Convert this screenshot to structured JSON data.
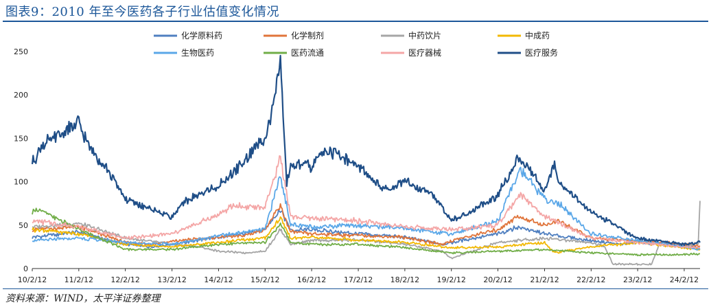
{
  "title": "图表9：2010 年至今医药各子行业估值变化情况",
  "source": "资料来源：WIND，太平洋证券整理",
  "chart_data": {
    "type": "line",
    "ylim": [
      0,
      250
    ],
    "yticks": [
      0,
      50,
      100,
      150,
      200,
      250
    ],
    "x_range": [
      "2010-02-12",
      "2024-06-15"
    ],
    "xticks": [
      "10/2/12",
      "11/2/12",
      "12/2/12",
      "13/2/12",
      "14/2/12",
      "15/2/12",
      "16/2/12",
      "17/2/12",
      "18/2/12",
      "19/2/12",
      "20/2/12",
      "21/2/12",
      "22/2/12",
      "23/2/12",
      "24/2/12"
    ],
    "legend": "top",
    "series": [
      {
        "name": "化学原料药",
        "color": "#4f7fc0",
        "x": [
          "2010-02-12",
          "2011-02-12",
          "2012-02-12",
          "2012-09-01",
          "2013-06-01",
          "2014-02-12",
          "2014-09-01",
          "2015-02-12",
          "2015-06-12",
          "2015-09-01",
          "2016-02-12",
          "2016-09-01",
          "2017-02-12",
          "2018-02-12",
          "2018-12-01",
          "2019-02-12",
          "2020-02-12",
          "2020-07-15",
          "2021-02-12",
          "2022-02-12",
          "2022-10-01",
          "2023-02-12",
          "2024-02-12",
          "2024-06-15"
        ],
        "y": [
          36,
          42,
          28,
          25,
          30,
          36,
          40,
          46,
          68,
          44,
          45,
          42,
          40,
          36,
          28,
          30,
          40,
          48,
          40,
          32,
          28,
          30,
          26,
          24
        ]
      },
      {
        "name": "化学制剂",
        "color": "#e0743a",
        "x": [
          "2010-02-12",
          "2011-02-12",
          "2012-02-12",
          "2012-09-01",
          "2013-06-01",
          "2014-02-12",
          "2014-09-01",
          "2015-02-12",
          "2015-06-12",
          "2015-09-01",
          "2016-02-12",
          "2017-02-12",
          "2018-02-12",
          "2018-12-01",
          "2019-02-12",
          "2020-02-12",
          "2020-07-15",
          "2021-02-12",
          "2021-06-01",
          "2022-02-12",
          "2023-02-12",
          "2024-02-12",
          "2024-06-15"
        ],
        "y": [
          45,
          48,
          30,
          28,
          33,
          36,
          38,
          45,
          72,
          42,
          40,
          38,
          36,
          28,
          32,
          45,
          60,
          50,
          55,
          35,
          32,
          28,
          26
        ]
      },
      {
        "name": "中药饮片",
        "color": "#a5a5a5",
        "x": [
          "2010-02-12",
          "2011-02-12",
          "2012-02-12",
          "2013-02-12",
          "2013-09-01",
          "2014-02-12",
          "2014-09-01",
          "2015-02-12",
          "2015-06-12",
          "2015-09-01",
          "2016-02-12",
          "2017-02-12",
          "2018-02-12",
          "2018-12-01",
          "2019-02-12",
          "2020-02-12",
          "2021-02-12",
          "2022-02-12",
          "2022-06-01",
          "2022-08-01",
          "2023-02-12",
          "2023-06-01",
          "2023-08-01",
          "2024-02-12",
          "2024-06-01",
          "2024-06-15"
        ],
        "y": [
          48,
          52,
          35,
          28,
          25,
          20,
          18,
          20,
          45,
          28,
          32,
          33,
          28,
          20,
          12,
          30,
          35,
          30,
          25,
          5,
          5,
          5,
          28,
          25,
          30,
          78
        ]
      },
      {
        "name": "中成药",
        "color": "#f2b800",
        "x": [
          "2010-02-12",
          "2011-02-12",
          "2012-02-12",
          "2013-02-12",
          "2014-02-12",
          "2015-02-12",
          "2015-06-12",
          "2015-09-01",
          "2016-02-12",
          "2017-02-12",
          "2018-02-12",
          "2019-02-12",
          "2020-02-12",
          "2021-02-12",
          "2021-05-01",
          "2022-02-12",
          "2023-02-12",
          "2024-02-12",
          "2024-06-15"
        ],
        "y": [
          45,
          40,
          28,
          25,
          30,
          35,
          58,
          35,
          36,
          33,
          30,
          24,
          25,
          30,
          18,
          25,
          30,
          24,
          22
        ]
      },
      {
        "name": "生物医药",
        "color": "#5aa7e8",
        "x": [
          "2010-02-12",
          "2011-02-12",
          "2012-02-12",
          "2013-02-12",
          "2014-02-12",
          "2015-02-12",
          "2015-06-12",
          "2015-09-01",
          "2016-02-12",
          "2017-02-12",
          "2018-02-12",
          "2019-02-12",
          "2020-02-12",
          "2020-08-01",
          "2021-02-12",
          "2021-06-01",
          "2022-02-12",
          "2023-02-12",
          "2024-02-12",
          "2024-06-15"
        ],
        "y": [
          32,
          35,
          30,
          28,
          38,
          45,
          108,
          50,
          48,
          50,
          46,
          40,
          55,
          115,
          80,
          75,
          40,
          32,
          25,
          22
        ]
      },
      {
        "name": "医药流通",
        "color": "#70ad47",
        "x": [
          "2010-02-12",
          "2010-03-01",
          "2011-02-12",
          "2012-02-12",
          "2013-02-12",
          "2014-02-12",
          "2015-02-12",
          "2015-06-12",
          "2015-09-01",
          "2016-02-12",
          "2017-02-12",
          "2018-02-12",
          "2019-02-12",
          "2020-02-12",
          "2021-02-12",
          "2022-02-12",
          "2023-02-12",
          "2024-02-12",
          "2024-06-15"
        ],
        "y": [
          60,
          70,
          45,
          22,
          22,
          28,
          30,
          52,
          30,
          28,
          28,
          24,
          18,
          20,
          22,
          18,
          16,
          16,
          17
        ]
      },
      {
        "name": "医疗器械",
        "color": "#f4a6a6",
        "x": [
          "2010-02-12",
          "2011-02-12",
          "2012-02-12",
          "2013-02-12",
          "2014-02-12",
          "2014-06-01",
          "2015-02-12",
          "2015-06-12",
          "2015-09-01",
          "2016-02-12",
          "2017-02-12",
          "2018-02-12",
          "2019-02-12",
          "2020-02-12",
          "2020-08-01",
          "2021-02-12",
          "2022-02-12",
          "2023-02-12",
          "2024-02-12",
          "2024-06-15"
        ],
        "y": [
          55,
          48,
          35,
          40,
          62,
          72,
          70,
          128,
          60,
          58,
          55,
          48,
          45,
          50,
          85,
          60,
          35,
          30,
          25,
          24
        ]
      },
      {
        "name": "医疗服务",
        "color": "#1f4e87",
        "x": [
          "2010-02-12",
          "2010-05-01",
          "2011-02-12",
          "2011-05-01",
          "2011-09-01",
          "2012-02-12",
          "2012-09-01",
          "2013-02-12",
          "2013-06-01",
          "2014-02-12",
          "2014-06-01",
          "2015-02-12",
          "2015-04-01",
          "2015-06-12",
          "2015-08-01",
          "2015-09-01",
          "2016-02-12",
          "2016-06-01",
          "2017-02-12",
          "2017-09-01",
          "2018-02-12",
          "2018-09-01",
          "2019-02-12",
          "2019-06-01",
          "2020-02-12",
          "2020-08-01",
          "2021-02-12",
          "2021-05-01",
          "2021-06-01",
          "2022-02-12",
          "2023-02-12",
          "2024-02-12",
          "2024-06-15"
        ],
        "y": [
          122,
          142,
          168,
          140,
          120,
          80,
          68,
          60,
          78,
          95,
          108,
          152,
          178,
          233,
          95,
          120,
          118,
          138,
          118,
          90,
          100,
          88,
          55,
          62,
          85,
          130,
          88,
          125,
          100,
          65,
          35,
          28,
          30
        ]
      }
    ]
  }
}
